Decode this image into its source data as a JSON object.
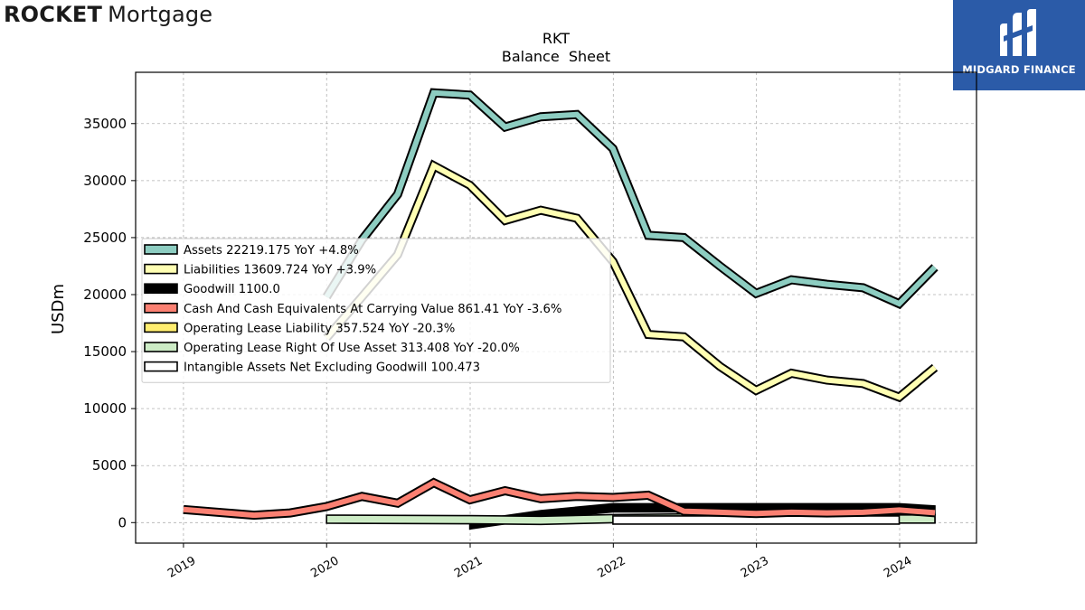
{
  "brand": {
    "word1": "ROCKET",
    "word2": "Mortgage"
  },
  "badge": {
    "label": "MIDGARD FINANCE",
    "icon": "midgard-logo-icon"
  },
  "colors": {
    "assets": "#8dcdc1",
    "liabilities": "#ffffb3",
    "goodwill": "#000000",
    "cash": "#fb8072",
    "op_lease_liab": "#ffed6f",
    "op_lease_rou": "#ccebc5",
    "intangible": "#ffffff",
    "badge": "#2b5ba8"
  },
  "chart_data": {
    "type": "line",
    "title": "RKT",
    "subtitle": "Balance  Sheet",
    "xlabel": "",
    "ylabel": "USDm",
    "xlim": [
      "2018-09-01",
      "2024-07-15"
    ],
    "ylim": [
      -1800,
      39500
    ],
    "yticks": [
      0,
      5000,
      10000,
      15000,
      20000,
      25000,
      30000,
      35000
    ],
    "xticks": [
      {
        "label": "2019",
        "date": "2019-01-01"
      },
      {
        "label": "2020",
        "date": "2020-01-01"
      },
      {
        "label": "2021",
        "date": "2021-01-01"
      },
      {
        "label": "2022",
        "date": "2022-01-01"
      },
      {
        "label": "2023",
        "date": "2023-01-01"
      },
      {
        "label": "2024",
        "date": "2024-01-01"
      }
    ],
    "grid": true,
    "legend_position": "center-left",
    "series": [
      {
        "name": "Assets  22219.175 YoY +4.8%",
        "key": "assets",
        "style": "line",
        "points": [
          [
            "2020-01-01",
            19800
          ],
          [
            "2020-03-31",
            24800
          ],
          [
            "2020-06-30",
            28800
          ],
          [
            "2020-09-30",
            37700
          ],
          [
            "2020-12-31",
            37500
          ],
          [
            "2021-03-31",
            34700
          ],
          [
            "2021-06-30",
            35600
          ],
          [
            "2021-09-30",
            35800
          ],
          [
            "2021-12-31",
            32800
          ],
          [
            "2022-03-31",
            25200
          ],
          [
            "2022-06-30",
            25000
          ],
          [
            "2022-09-30",
            22500
          ],
          [
            "2022-12-31",
            20100
          ],
          [
            "2023-03-31",
            21300
          ],
          [
            "2023-06-30",
            20900
          ],
          [
            "2023-09-30",
            20600
          ],
          [
            "2023-12-31",
            19200
          ],
          [
            "2024-03-31",
            22400
          ]
        ]
      },
      {
        "name": "Liabilities  13609.724 YoY +3.9%",
        "key": "liabilities",
        "style": "line",
        "points": [
          [
            "2020-01-01",
            16200
          ],
          [
            "2020-03-31",
            19800
          ],
          [
            "2020-06-30",
            23500
          ],
          [
            "2020-09-30",
            31300
          ],
          [
            "2020-12-31",
            29600
          ],
          [
            "2021-03-31",
            26500
          ],
          [
            "2021-06-30",
            27400
          ],
          [
            "2021-09-30",
            26700
          ],
          [
            "2021-12-31",
            22900
          ],
          [
            "2022-03-31",
            16500
          ],
          [
            "2022-06-30",
            16300
          ],
          [
            "2022-09-30",
            13700
          ],
          [
            "2022-12-31",
            11600
          ],
          [
            "2023-03-31",
            13100
          ],
          [
            "2023-06-30",
            12500
          ],
          [
            "2023-09-30",
            12200
          ],
          [
            "2023-12-31",
            11000
          ],
          [
            "2024-03-31",
            13600
          ]
        ]
      },
      {
        "name": "Goodwill  1100.0",
        "key": "goodwill",
        "style": "band",
        "points": [
          [
            "2020-12-31",
            -200
          ],
          [
            "2021-06-30",
            700
          ],
          [
            "2021-12-31",
            1300
          ],
          [
            "2022-06-30",
            1300
          ],
          [
            "2022-12-31",
            1300
          ],
          [
            "2023-06-30",
            1300
          ],
          [
            "2023-12-31",
            1300
          ],
          [
            "2024-03-31",
            1100
          ]
        ]
      },
      {
        "name": "Cash And Cash Equivalents At Carrying Value  861.41 YoY -3.6%",
        "key": "cash",
        "style": "line",
        "points": [
          [
            "2019-01-01",
            1150
          ],
          [
            "2019-06-30",
            650
          ],
          [
            "2019-09-30",
            850
          ],
          [
            "2019-12-31",
            1400
          ],
          [
            "2020-03-31",
            2300
          ],
          [
            "2020-06-30",
            1700
          ],
          [
            "2020-09-30",
            3500
          ],
          [
            "2020-12-31",
            2000
          ],
          [
            "2021-03-31",
            2800
          ],
          [
            "2021-06-30",
            2100
          ],
          [
            "2021-09-30",
            2300
          ],
          [
            "2021-12-31",
            2200
          ],
          [
            "2022-03-31",
            2400
          ],
          [
            "2022-06-30",
            1000
          ],
          [
            "2022-09-30",
            900
          ],
          [
            "2022-12-31",
            800
          ],
          [
            "2023-03-31",
            900
          ],
          [
            "2023-06-30",
            850
          ],
          [
            "2023-09-30",
            900
          ],
          [
            "2023-12-31",
            1100
          ],
          [
            "2024-03-31",
            860
          ]
        ]
      },
      {
        "name": "Operating Lease Liability  357.524 YoY -20.3%",
        "key": "op_lease_liab",
        "style": "band",
        "points": [
          [
            "2022-12-31",
            600
          ],
          [
            "2023-06-30",
            500
          ],
          [
            "2023-12-31",
            450
          ],
          [
            "2024-03-31",
            360
          ]
        ]
      },
      {
        "name": "Operating Lease Right Of Use Asset  313.408 YoY -20.0%",
        "key": "op_lease_rou",
        "style": "band",
        "points": [
          [
            "2020-01-01",
            300
          ],
          [
            "2020-12-31",
            250
          ],
          [
            "2021-06-30",
            200
          ],
          [
            "2021-12-31",
            350
          ],
          [
            "2022-06-30",
            400
          ],
          [
            "2022-12-31",
            350
          ],
          [
            "2023-06-30",
            330
          ],
          [
            "2023-12-31",
            320
          ],
          [
            "2024-03-31",
            313
          ]
        ]
      },
      {
        "name": "Intangible Assets Net Excluding Goodwill  100.473",
        "key": "intangible",
        "style": "band",
        "points": [
          [
            "2021-12-31",
            230
          ],
          [
            "2022-06-30",
            230
          ],
          [
            "2022-12-31",
            230
          ],
          [
            "2023-06-30",
            230
          ],
          [
            "2023-12-31",
            230
          ]
        ]
      }
    ]
  }
}
